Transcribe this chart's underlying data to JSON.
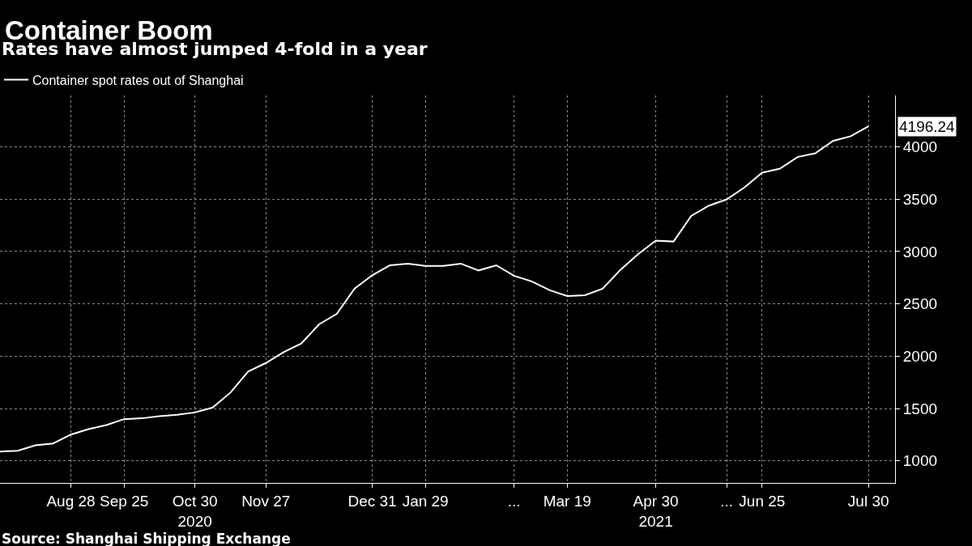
{
  "chart_data": {
    "type": "line",
    "title": "Container Boom",
    "subtitle": "Rates have almost jumped 4-fold in a year",
    "categories": [
      null,
      null,
      null,
      null,
      "Aug 28",
      null,
      null,
      "Sep 25",
      null,
      null,
      null,
      "Oct 30\n2020",
      null,
      null,
      null,
      "Nov 27",
      null,
      null,
      null,
      null,
      null,
      "Dec 31",
      null,
      null,
      "Jan 29",
      null,
      null,
      null,
      null,
      "...",
      null,
      null,
      "Mar 19",
      null,
      null,
      null,
      null,
      "Apr 30\n2021",
      null,
      null,
      null,
      "...",
      null,
      "Jun 25",
      null,
      null,
      null,
      null,
      null,
      "Jul 30"
    ],
    "series": [
      {
        "name": "Container spot rates out of Shanghai",
        "color": "#ffffff",
        "values": [
          1090,
          1097,
          1149,
          1167,
          1252,
          1303,
          1342,
          1399,
          1407,
          1428,
          1440,
          1463,
          1510,
          1652,
          1853,
          1935,
          2038,
          2121,
          2304,
          2404,
          2644,
          2773,
          2868,
          2884,
          2863,
          2863,
          2884,
          2819,
          2868,
          2768,
          2714,
          2631,
          2575,
          2582,
          2644,
          2824,
          2974,
          3103,
          3095,
          3340,
          3438,
          3497,
          3611,
          3753,
          3791,
          3902,
          3938,
          4056,
          4101,
          4196.24
        ]
      }
    ],
    "ylim": [
      790,
      4490
    ],
    "yticks": [
      1000,
      1500,
      2000,
      2500,
      3000,
      3500,
      4000
    ],
    "annotations": [
      "4196.24",
      "Source: Shanghai Shipping Exchange"
    ],
    "grid": true,
    "legend": "top left",
    "marker": "none",
    "line_style": "solid"
  }
}
